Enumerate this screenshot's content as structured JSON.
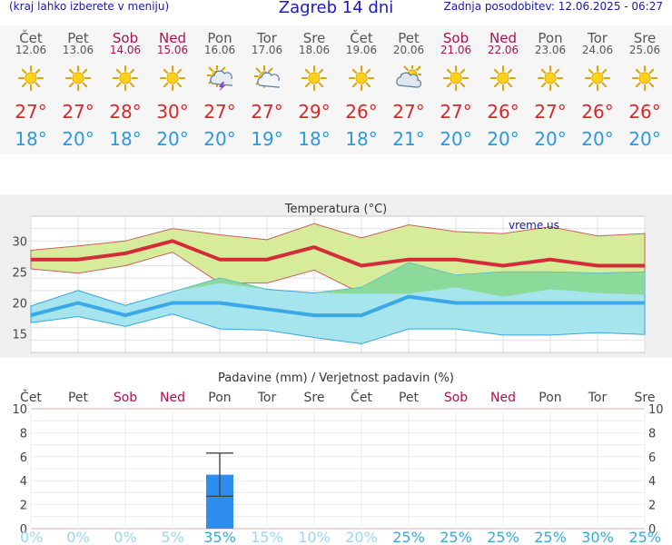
{
  "header": {
    "menu_hint": "(kraj lahko izberete v meniju)",
    "title": "Zagreb 14 dni",
    "updated": "Zadnja posodobitev: 12.06.2025 - 06:27"
  },
  "days": [
    {
      "name": "Čet",
      "date": "12.06",
      "weekend": false,
      "icon": "sun-icon",
      "max": "27°",
      "min": "18°"
    },
    {
      "name": "Pet",
      "date": "13.06",
      "weekend": false,
      "icon": "sun-icon",
      "max": "27°",
      "min": "20°"
    },
    {
      "name": "Sob",
      "date": "14.06",
      "weekend": true,
      "icon": "sun-icon",
      "max": "28°",
      "min": "18°"
    },
    {
      "name": "Ned",
      "date": "15.06",
      "weekend": true,
      "icon": "sun-icon",
      "max": "30°",
      "min": "20°"
    },
    {
      "name": "Pon",
      "date": "16.06",
      "weekend": false,
      "icon": "storm-cloud-sun-icon",
      "max": "27°",
      "min": "20°"
    },
    {
      "name": "Tor",
      "date": "17.06",
      "weekend": false,
      "icon": "sun-cloud-icon",
      "max": "27°",
      "min": "19°"
    },
    {
      "name": "Sre",
      "date": "18.06",
      "weekend": false,
      "icon": "sun-icon",
      "max": "29°",
      "min": "18°"
    },
    {
      "name": "Čet",
      "date": "19.06",
      "weekend": false,
      "icon": "sun-icon",
      "max": "26°",
      "min": "18°"
    },
    {
      "name": "Pet",
      "date": "20.06",
      "weekend": false,
      "icon": "cloud-sun-icon",
      "max": "27°",
      "min": "21°"
    },
    {
      "name": "Sob",
      "date": "21.06",
      "weekend": true,
      "icon": "sun-icon",
      "max": "27°",
      "min": "20°"
    },
    {
      "name": "Ned",
      "date": "22.06",
      "weekend": true,
      "icon": "sun-icon",
      "max": "26°",
      "min": "20°"
    },
    {
      "name": "Pon",
      "date": "23.06",
      "weekend": false,
      "icon": "sun-icon",
      "max": "27°",
      "min": "20°"
    },
    {
      "name": "Tor",
      "date": "24.06",
      "weekend": false,
      "icon": "sun-icon",
      "max": "26°",
      "min": "20°"
    },
    {
      "name": "Sre",
      "date": "25.06",
      "weekend": false,
      "icon": "sun-icon",
      "max": "26°",
      "min": "20°"
    }
  ],
  "colors": {
    "max_line": "#d42a3a",
    "min_line": "#3ba8e8",
    "max_band": "#d6ec9a",
    "min_band": "#a6e4ee",
    "overlap_band": "#88d890",
    "precip_bar": "#2e8ef0",
    "prob_low": "#9ad8ee",
    "prob_high": "#3aaad8",
    "weekend": "#b0104f"
  },
  "chart_data": [
    {
      "type": "line",
      "title": "Temperatura (°C)",
      "watermark": "vreme.us",
      "ylim": [
        12,
        34
      ],
      "y_ticks": [
        15,
        20,
        25,
        30
      ],
      "grid": true,
      "series": [
        {
          "values": [
            27,
            27,
            28,
            30,
            27,
            27,
            29,
            26,
            27,
            27,
            26,
            27,
            26,
            26
          ]
        },
        {
          "values": [
            18,
            20,
            18,
            20,
            20,
            19,
            18,
            18,
            21,
            20,
            20,
            20,
            20,
            20
          ]
        }
      ],
      "max_range_upper": [
        28.5,
        29.2,
        30,
        32,
        31,
        30.2,
        32.8,
        30.5,
        32.6,
        31.5,
        31.2,
        32.3,
        30.8,
        31.2
      ],
      "max_range_lower": [
        25.5,
        24.8,
        26,
        28.2,
        23.2,
        23.2,
        25.3,
        21.5,
        21.5,
        22.5,
        21,
        22.2,
        21.6,
        21.3
      ],
      "min_range_upper": [
        19.5,
        22,
        19.6,
        21.8,
        24,
        22.2,
        21.6,
        22.5,
        26.5,
        24.5,
        25,
        25,
        24.8,
        25
      ],
      "min_range_lower": [
        16.8,
        17.8,
        16.2,
        18.2,
        15.8,
        15.6,
        14.4,
        13.4,
        15.8,
        15.8,
        14.8,
        14.8,
        15.2,
        14.9
      ]
    },
    {
      "type": "bar",
      "title": "Padavine (mm) / Verjetnost padavin (%)",
      "categories": [
        "Čet",
        "Pet",
        "Sob",
        "Ned",
        "Pon",
        "Tor",
        "Sre",
        "Čet",
        "Pet",
        "Sob",
        "Ned",
        "Pon",
        "Tor",
        "Sre"
      ],
      "ylim": [
        0,
        10
      ],
      "y_ticks": [
        0,
        2,
        4,
        6,
        8,
        10
      ],
      "values": [
        0,
        0,
        0,
        0,
        4.5,
        0,
        0,
        0,
        0,
        0,
        0,
        0,
        0,
        0
      ],
      "error": {
        "index": 4,
        "low": 2.7,
        "high": 6.3
      },
      "probability": [
        "0%",
        "0%",
        "0%",
        "5%",
        "35%",
        "15%",
        "10%",
        "20%",
        "25%",
        "25%",
        "25%",
        "25%",
        "30%",
        "25%"
      ],
      "probability_values": [
        0,
        0,
        0,
        5,
        35,
        15,
        10,
        20,
        25,
        25,
        25,
        25,
        30,
        25
      ]
    }
  ]
}
